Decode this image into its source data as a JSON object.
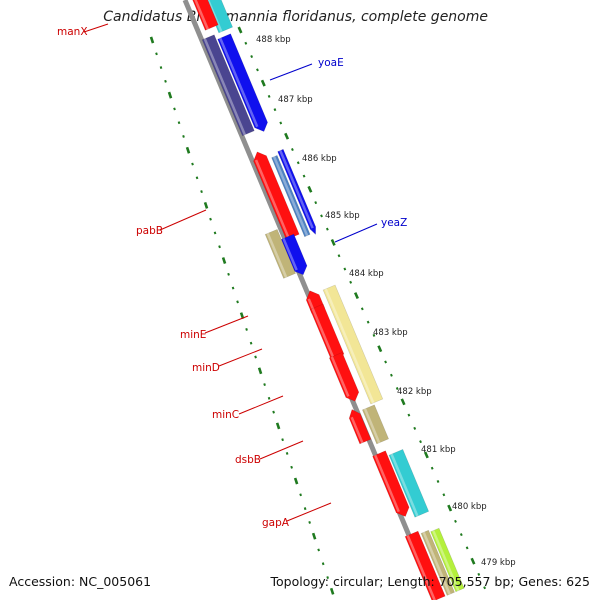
{
  "map": {
    "title": "Candidatus Blochmannia floridanus, complete genome",
    "accession_text": "Accession: NC_005061",
    "summary_text": "Topology: circular; Length: 705,557 bp; Genes: 625",
    "colors": {
      "backbone": "#8f8f8f",
      "tick": "#1f7a1f",
      "label_red": "#cc0000",
      "label_blue": "#0000cc",
      "red": "#ff1010",
      "blue": "#1010ee",
      "navy": "#4a4590",
      "steel": "#4d82c2",
      "tan": "#c0b478",
      "cyan": "#33ccd2",
      "cream": "#f2e696",
      "lime": "#b4f03c"
    },
    "kbp_labels": [
      "488 kbp",
      "487 kbp",
      "486 kbp",
      "485 kbp",
      "484 kbp",
      "483 kbp",
      "482 kbp",
      "481 kbp",
      "480 kbp",
      "479 kbp"
    ],
    "genes": [
      {
        "label": "manX",
        "label_color": "red"
      },
      {
        "label": "yoaE",
        "label_color": "blue"
      },
      {
        "label": "pabB",
        "label_color": "red"
      },
      {
        "label": "yeaZ",
        "label_color": "blue"
      },
      {
        "label": "minE",
        "label_color": "red"
      },
      {
        "label": "minD",
        "label_color": "red"
      },
      {
        "label": "minC",
        "label_color": "red"
      },
      {
        "label": "dsbB",
        "label_color": "red"
      },
      {
        "label": "gapA",
        "label_color": "red"
      }
    ]
  }
}
